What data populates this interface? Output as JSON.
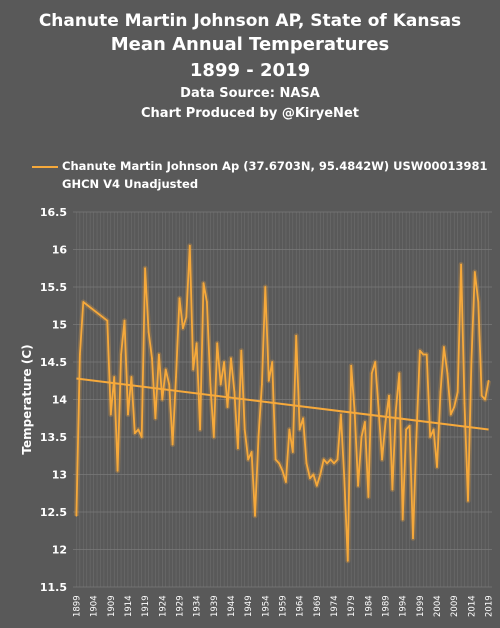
{
  "chart_data": {
    "type": "line",
    "title": "Chanute Martin Johnson AP, State of Kansas",
    "subtitle": "Mean Annual Temperatures",
    "years_label": "1899 - 2019",
    "source": "Data Source: NASA",
    "credit": "Chart Produced by @KiryeNet",
    "ylabel": "Temperature (C)",
    "xlabel": "",
    "legend_line1": "Chanute Martin Johnson Ap (37.6703N, 95.4842W) USW00013981",
    "legend_line2": "GHCN V4 Unadjusted",
    "legend_position": "top",
    "grid": true,
    "ylim": [
      11.5,
      16.5
    ],
    "yticks": [
      "11.5",
      "12",
      "12.5",
      "13",
      "13.5",
      "14",
      "14.5",
      "15",
      "15.5",
      "16",
      "16.5"
    ],
    "xticks": [
      "1899",
      "1904",
      "1909",
      "1914",
      "1919",
      "1924",
      "1929",
      "1934",
      "1939",
      "1944",
      "1949",
      "1954",
      "1959",
      "1964",
      "1969",
      "1974",
      "1979",
      "1984",
      "1989",
      "1994",
      "1999",
      "2004",
      "2009",
      "2014",
      "2019"
    ],
    "series": [
      {
        "color": "#f6a93b",
        "x": [
          1899,
          1900,
          1901,
          1908,
          1909,
          1910,
          1911,
          1912,
          1913,
          1914,
          1915,
          1916,
          1917,
          1918,
          1919,
          1920,
          1921,
          1922,
          1923,
          1924,
          1925,
          1926,
          1927,
          1928,
          1929,
          1930,
          1931,
          1932,
          1933,
          1934,
          1935,
          1936,
          1937,
          1938,
          1939,
          1940,
          1941,
          1942,
          1943,
          1944,
          1945,
          1946,
          1947,
          1948,
          1949,
          1950,
          1951,
          1952,
          1953,
          1954,
          1955,
          1956,
          1957,
          1958,
          1959,
          1960,
          1961,
          1962,
          1963,
          1964,
          1965,
          1966,
          1967,
          1968,
          1969,
          1970,
          1971,
          1972,
          1973,
          1974,
          1975,
          1976,
          1977,
          1978,
          1979,
          1980,
          1981,
          1982,
          1983,
          1984,
          1985,
          1986,
          1987,
          1988,
          1989,
          1990,
          1991,
          1992,
          1993,
          1994,
          1995,
          1996,
          1997,
          1998,
          1999,
          2000,
          2001,
          2002,
          2003,
          2004,
          2005,
          2006,
          2007,
          2008,
          2009,
          2010,
          2011,
          2012,
          2013,
          2014,
          2015,
          2016,
          2017,
          2018,
          2019
        ],
        "values": [
          12.45,
          14.6,
          15.3,
          15.05,
          13.8,
          14.3,
          13.05,
          14.6,
          15.05,
          13.8,
          14.3,
          13.55,
          13.6,
          13.5,
          15.75,
          14.9,
          14.55,
          13.75,
          14.6,
          14.0,
          14.4,
          14.2,
          13.4,
          14.3,
          15.35,
          14.95,
          15.1,
          16.05,
          14.4,
          14.75,
          13.6,
          15.55,
          15.3,
          14.2,
          13.5,
          14.75,
          14.2,
          14.5,
          13.9,
          14.55,
          14.1,
          13.35,
          14.65,
          13.6,
          13.2,
          13.3,
          12.45,
          13.5,
          14.2,
          15.5,
          14.25,
          14.5,
          13.2,
          13.15,
          13.05,
          12.9,
          13.6,
          13.3,
          14.85,
          13.6,
          13.75,
          13.15,
          12.95,
          13.0,
          12.85,
          13.0,
          13.2,
          13.15,
          13.2,
          13.15,
          13.2,
          13.8,
          12.95,
          11.85,
          14.45,
          13.85,
          12.85,
          13.5,
          13.7,
          12.7,
          14.35,
          14.5,
          13.85,
          13.2,
          13.7,
          14.05,
          12.8,
          13.85,
          14.35,
          12.4,
          13.6,
          13.65,
          12.15,
          13.5,
          14.65,
          14.6,
          14.6,
          13.5,
          13.6,
          13.1,
          14.1,
          14.7,
          14.35,
          13.8,
          13.9,
          14.1,
          15.8,
          13.95,
          12.65,
          14.5,
          15.7,
          15.3,
          14.05,
          14.0,
          14.25
        ]
      }
    ],
    "trendline": {
      "x": [
        1899,
        2019
      ],
      "values": [
        14.28,
        13.6
      ],
      "color": "#f6a93b"
    }
  }
}
